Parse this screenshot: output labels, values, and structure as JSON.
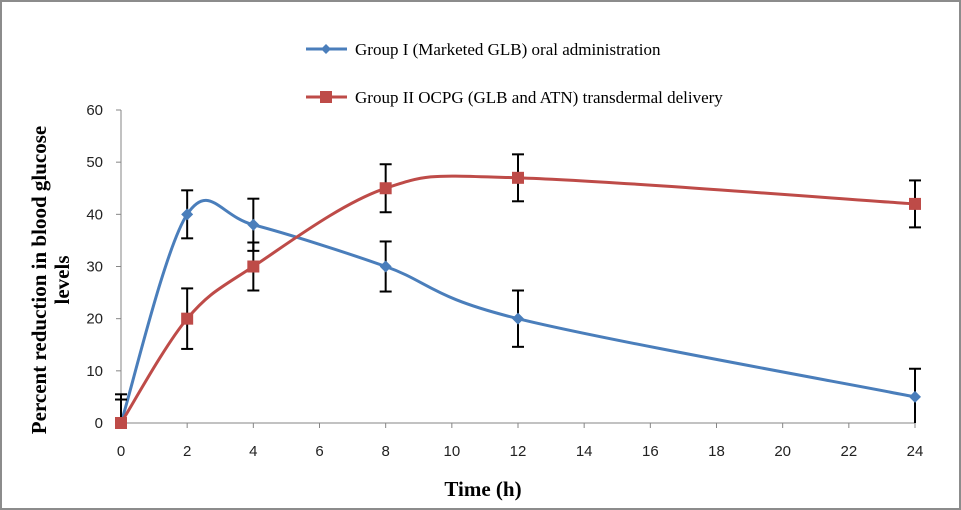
{
  "chart_data": {
    "type": "line",
    "title": "",
    "xlabel": "Time (h)",
    "ylabel_lines": [
      "Percent reduction in blood glucose",
      "levels"
    ],
    "ylabel": "Percent reduction in blood glucose levels",
    "xlim": [
      0,
      24
    ],
    "ylim": [
      0,
      60
    ],
    "x_ticks": [
      0,
      2,
      4,
      6,
      8,
      10,
      12,
      14,
      16,
      18,
      20,
      22,
      24
    ],
    "y_ticks": [
      0,
      10,
      20,
      30,
      40,
      50,
      60
    ],
    "grid": false,
    "legend_position": "top",
    "smooth": true,
    "series": [
      {
        "name": "Group I (Marketed GLB) oral administration",
        "color": "#4a7ebb",
        "marker": "diamond",
        "x": [
          0,
          2,
          4,
          8,
          12,
          24
        ],
        "values": [
          0,
          40,
          38,
          30,
          20,
          5
        ],
        "error": [
          5.5,
          4.6,
          5.0,
          4.8,
          5.4,
          5.4
        ]
      },
      {
        "name": "Group II OCPG (GLB and ATN) transdermal delivery",
        "color": "#be4b48",
        "marker": "square",
        "x": [
          0,
          2,
          4,
          8,
          12,
          24
        ],
        "values": [
          0,
          20,
          30,
          45,
          47,
          42
        ],
        "error": [
          4.5,
          5.8,
          4.6,
          4.6,
          4.5,
          4.5
        ]
      }
    ]
  }
}
